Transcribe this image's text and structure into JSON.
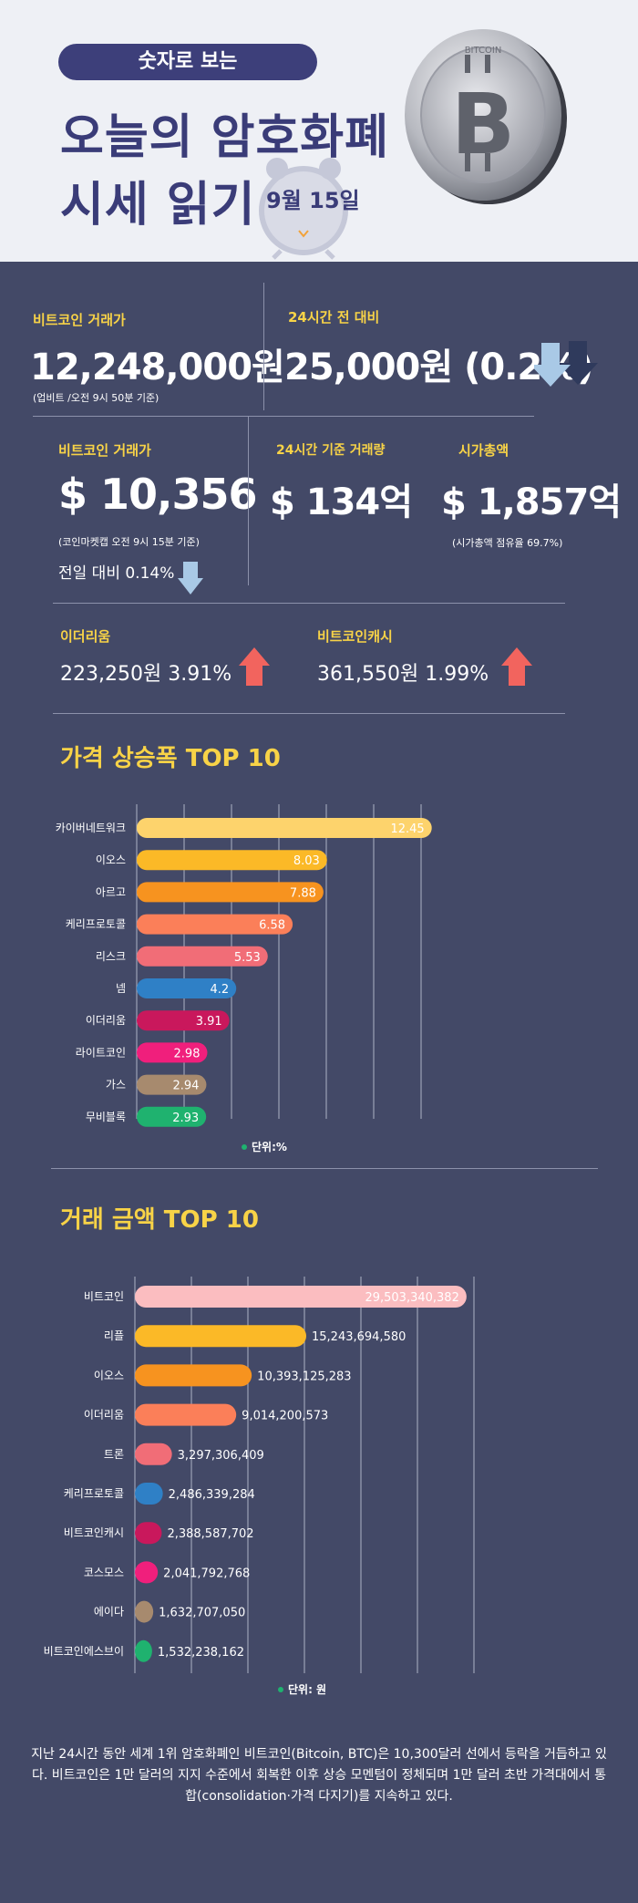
{
  "header": {
    "pill": "숫자로 보는",
    "title_line1": "오늘의 암호화폐",
    "title_line2": "시세 읽기",
    "date": "9월 15일",
    "coin_text": "BITCOIN"
  },
  "krw": {
    "label": "비트코인 거래가",
    "value": "12,248,000원",
    "note": "(업비트 /오전 9시 50분 기준)",
    "change_label": "24시간 전 대비",
    "change_value": "25,000원 (0.2%)"
  },
  "usd": {
    "label": "비트코인 거래가",
    "value": "$ 10,356",
    "note": "(코인마켓캡 오전 9시 15분 기준)",
    "daily_change": "전일 대비 0.14%",
    "volume_label": "24시간 기준 거래량",
    "volume_value": "$ 134억",
    "mcap_label": "시가총액",
    "mcap_value": "$ 1,857억",
    "mcap_note": "(시가총액 점유율 69.7%)"
  },
  "alts": {
    "eth_label": "이더리움",
    "eth_value": "223,250원  3.91%",
    "bch_label": "비트코인캐시",
    "bch_value": "361,550원  1.99%"
  },
  "colors": {
    "arrow_up": "#f2645e",
    "arrow_down": "#a9c9e6",
    "background": "#434967",
    "accent": "#f8d347"
  },
  "chart_data": [
    {
      "type": "bar",
      "title": "가격 상승폭 TOP 10",
      "unit_label": "단위:%",
      "categories": [
        "카이버네트워크",
        "이오스",
        "아르고",
        "케리프로토콜",
        "리스크",
        "넴",
        "이더리움",
        "라이트코인",
        "가스",
        "무비블록"
      ],
      "values": [
        12.45,
        8.03,
        7.88,
        6.58,
        5.53,
        4.2,
        3.91,
        2.98,
        2.94,
        2.93
      ],
      "value_labels": [
        "12.45",
        "8.03",
        "7.88",
        "6.58",
        "5.53",
        "4.2",
        "3.91",
        "2.98",
        "2.94",
        "2.93"
      ],
      "colors": [
        "#fdd36c",
        "#fbb927",
        "#f7931f",
        "#fb7f59",
        "#f16d77",
        "#2f80c6",
        "#c9185c",
        "#f01f7c",
        "#a78a6e",
        "#1fb26f"
      ],
      "xlim": [
        0,
        14
      ],
      "grid": true
    },
    {
      "type": "bar",
      "title": "거래 금액 TOP 10",
      "unit_label": "단위: 원",
      "categories": [
        "비트코인",
        "리플",
        "이오스",
        "이더리움",
        "트론",
        "케리프로토콜",
        "비트코인캐시",
        "코스모스",
        "에이다",
        "비트코인에스브이"
      ],
      "values": [
        29503340382,
        15243694580,
        10393125283,
        9014200573,
        3297306409,
        2486339284,
        2388587702,
        2041792768,
        1632707050,
        1532238162
      ],
      "value_labels": [
        "29,503,340,382",
        "15,243,694,580",
        "10,393,125,283",
        "9,014,200,573",
        "3,297,306,409",
        "2,486,339,284",
        "2,388,587,702",
        "2,041,792,768",
        "1,632,707,050",
        "1,532,238,162"
      ],
      "colors": [
        "#fbbdc0",
        "#fbb927",
        "#f7931f",
        "#fb7f59",
        "#f16d77",
        "#2f80c6",
        "#c9185c",
        "#f01f7c",
        "#a78a6e",
        "#1fb26f"
      ],
      "xlim": [
        0,
        30000000000
      ],
      "grid": true
    }
  ],
  "summary": "지난 24시간 동안 세계 1위 암호화폐인 비트코인(Bitcoin, BTC)은 10,300달러 선에서 등락을 거듭하고 있다. 비트코인은 1만 달러의 지지 수준에서 회복한 이후 상승 모멘텀이 정체되며 1만 달러 초반 가격대에서 통합(consolidation·가격 다지기)를 지속하고 있다."
}
